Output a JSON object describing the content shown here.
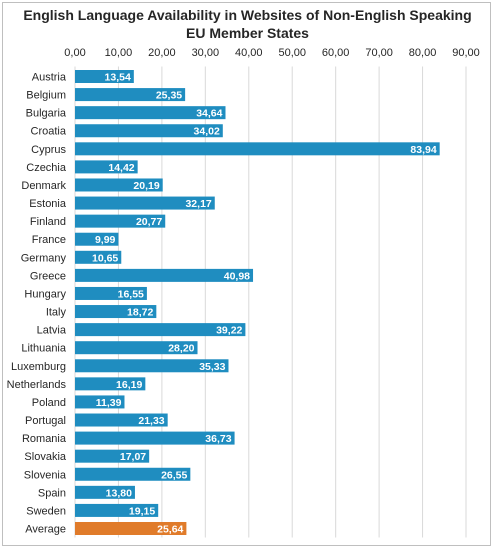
{
  "chart_data": {
    "type": "bar",
    "orientation": "horizontal",
    "title_line1": "English Language Availability in Websites of Non-English Speaking",
    "title_line2": "EU Member States",
    "xlim": [
      0,
      90
    ],
    "x_ticks": [
      "0,00",
      "10,00",
      "20,00",
      "30,00",
      "40,00",
      "50,00",
      "60,00",
      "70,00",
      "80,00",
      "90,00"
    ],
    "x_axis_position": "top",
    "grid": true,
    "categories": [
      "Austria",
      "Belgium",
      "Bulgaria",
      "Croatia",
      "Cyprus",
      "Czechia",
      "Denmark",
      "Estonia",
      "Finland",
      "France",
      "Germany",
      "Greece",
      "Hungary",
      "Italy",
      "Latvia",
      "Lithuania",
      "Luxemburg",
      "Netherlands",
      "Poland",
      "Portugal",
      "Romania",
      "Slovakia",
      "Slovenia",
      "Spain",
      "Sweden",
      "Average"
    ],
    "values": [
      13.54,
      25.35,
      34.64,
      34.02,
      83.94,
      14.42,
      20.19,
      32.17,
      20.77,
      9.99,
      10.65,
      40.98,
      16.55,
      18.72,
      39.22,
      28.2,
      35.33,
      16.19,
      11.39,
      21.33,
      36.73,
      17.07,
      26.55,
      13.8,
      19.15,
      25.64
    ],
    "value_labels": [
      "13,54",
      "25,35",
      "34,64",
      "34,02",
      "83,94",
      "14,42",
      "20,19",
      "32,17",
      "20,77",
      "9,99",
      "10,65",
      "40,98",
      "16,55",
      "18,72",
      "39,22",
      "28,20",
      "35,33",
      "16,19",
      "11,39",
      "21,33",
      "36,73",
      "17,07",
      "26,55",
      "13,80",
      "19,15",
      "25,64"
    ],
    "colors": {
      "bar": "#1f8dc0",
      "highlight": "#e07b2a",
      "grid": "#d9d9d9",
      "label": "#ffffff"
    },
    "highlight_category": "Average"
  }
}
